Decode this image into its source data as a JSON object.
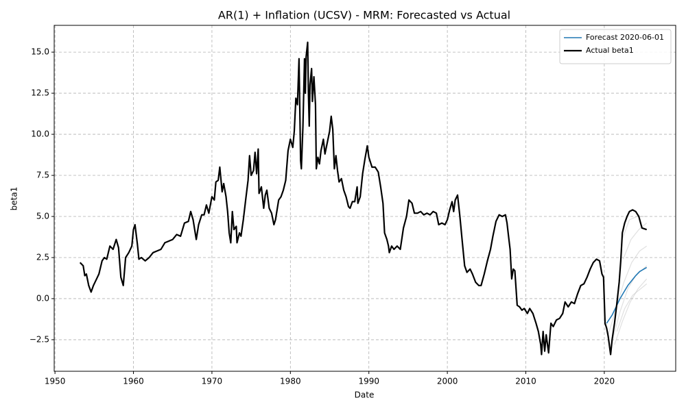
{
  "chart_data": {
    "type": "line",
    "title": "AR(1) + Inflation (UCSV) - MRM: Forecasted vs Actual",
    "x_label": "Date",
    "y_label": "beta1",
    "xlim": [
      1949.9,
      2029.1
    ],
    "ylim": [
      -4.42,
      16.63
    ],
    "xticks": [
      1950,
      1960,
      1970,
      1980,
      1990,
      2000,
      2010,
      2020
    ],
    "yticks": [
      {
        "value": -2.5,
        "label": "−2.5"
      },
      {
        "value": 0,
        "label": "0.0"
      },
      2.5,
      {
        "value": 5,
        "label": "5.0"
      },
      7.5,
      {
        "value": 10,
        "label": "10.0"
      },
      12.5,
      {
        "value": 15,
        "label": "15.0"
      }
    ],
    "grid": true,
    "legend": "upper right",
    "series": [
      {
        "name": "Forecast 2020-06-01",
        "color": "#1f77b4",
        "x": [
          2020.3,
          2021.0,
          2021.5,
          2022.0,
          2022.5,
          2023.0,
          2023.5,
          2024.0,
          2024.5,
          2025.4
        ],
        "values": [
          -1.5,
          -1.0,
          -0.5,
          0.0,
          0.4,
          0.8,
          1.1,
          1.4,
          1.65,
          1.9
        ]
      },
      {
        "name": "Actual beta1",
        "color": "#000000",
        "x": [
          1953.2,
          1953.6,
          1953.8,
          1954.0,
          1954.3,
          1954.6,
          1954.9,
          1955.3,
          1955.6,
          1956.0,
          1956.3,
          1956.6,
          1957.0,
          1957.4,
          1957.8,
          1958.1,
          1958.4,
          1958.7,
          1959.0,
          1959.4,
          1959.8,
          1960.0,
          1960.2,
          1960.5,
          1960.7,
          1961.0,
          1961.5,
          1962.0,
          1962.5,
          1963.0,
          1963.5,
          1964.0,
          1964.5,
          1965.0,
          1965.5,
          1966.0,
          1966.5,
          1967.0,
          1967.3,
          1967.6,
          1968.0,
          1968.3,
          1968.7,
          1969.0,
          1969.3,
          1969.6,
          1970.0,
          1970.3,
          1970.5,
          1970.8,
          1971.0,
          1971.3,
          1971.5,
          1971.8,
          1972.0,
          1972.2,
          1972.4,
          1972.6,
          1972.8,
          1973.1,
          1973.2,
          1973.5,
          1973.7,
          1974.0,
          1974.3,
          1974.6,
          1974.8,
          1975.0,
          1975.3,
          1975.5,
          1975.7,
          1975.9,
          1976.0,
          1976.3,
          1976.6,
          1976.8,
          1977.0,
          1977.3,
          1977.6,
          1977.9,
          1978.1,
          1978.5,
          1978.8,
          1979.1,
          1979.4,
          1979.7,
          1980.0,
          1980.3,
          1980.5,
          1980.7,
          1980.9,
          1981.1,
          1981.3,
          1981.4,
          1981.6,
          1981.8,
          1981.9,
          1982.0,
          1982.2,
          1982.3,
          1982.4,
          1982.5,
          1982.7,
          1982.8,
          1983.0,
          1983.2,
          1983.3,
          1983.5,
          1983.7,
          1983.9,
          1984.2,
          1984.4,
          1984.7,
          1985.0,
          1985.2,
          1985.4,
          1985.6,
          1985.8,
          1986.0,
          1986.2,
          1986.5,
          1986.8,
          1987.1,
          1987.4,
          1987.6,
          1987.9,
          1988.2,
          1988.5,
          1988.6,
          1988.9,
          1989.2,
          1989.5,
          1989.8,
          1990.0,
          1990.4,
          1990.8,
          1991.2,
          1991.5,
          1991.8,
          1992.0,
          1992.3,
          1992.5,
          1992.6,
          1992.9,
          1993.2,
          1993.6,
          1994.0,
          1994.4,
          1994.8,
          1995.1,
          1995.5,
          1995.8,
          1996.2,
          1996.6,
          1997.0,
          1997.4,
          1997.8,
          1998.2,
          1998.6,
          1998.9,
          1999.3,
          1999.7,
          2000.0,
          2000.3,
          2000.6,
          2000.8,
          2001.0,
          2001.3,
          2001.6,
          2001.9,
          2002.2,
          2002.5,
          2002.9,
          2003.2,
          2003.6,
          2004.0,
          2004.3,
          2004.7,
          2005.1,
          2005.5,
          2005.8,
          2006.2,
          2006.6,
          2007.0,
          2007.4,
          2007.6,
          2007.8,
          2008.0,
          2008.2,
          2008.4,
          2008.6,
          2008.9,
          2009.2,
          2009.5,
          2009.8,
          2010.2,
          2010.5,
          2010.9,
          2011.3,
          2011.6,
          2011.9,
          2012.0,
          2012.2,
          2012.4,
          2012.6,
          2012.9,
          2013.2,
          2013.5,
          2013.9,
          2014.3,
          2014.7,
          2015.0,
          2015.4,
          2015.8,
          2016.2,
          2016.6,
          2017.0,
          2017.4,
          2017.8,
          2018.2,
          2018.6,
          2019.0,
          2019.4,
          2019.7,
          2019.9,
          2020.1,
          2020.3,
          2020.5,
          2020.8,
          2021.0,
          2021.3,
          2021.6,
          2021.9,
          2022.1,
          2022.3,
          2022.6,
          2022.9,
          2023.2,
          2023.6,
          2024.0,
          2024.4,
          2024.8,
          2025.4
        ],
        "values": [
          2.2,
          2.0,
          1.4,
          1.5,
          0.8,
          0.4,
          0.8,
          1.2,
          1.5,
          2.3,
          2.5,
          2.4,
          3.2,
          3.0,
          3.6,
          3.1,
          1.3,
          0.8,
          2.5,
          2.8,
          3.2,
          4.2,
          4.5,
          3.3,
          2.4,
          2.5,
          2.3,
          2.5,
          2.8,
          2.9,
          3.0,
          3.4,
          3.5,
          3.6,
          3.9,
          3.8,
          4.6,
          4.7,
          5.3,
          4.8,
          3.6,
          4.5,
          5.1,
          5.1,
          5.7,
          5.2,
          6.2,
          6.0,
          7.1,
          7.2,
          8.0,
          6.5,
          7.0,
          6.2,
          5.3,
          4.0,
          3.4,
          5.3,
          4.2,
          4.4,
          3.4,
          4.0,
          3.8,
          4.8,
          6.0,
          7.2,
          8.7,
          7.5,
          7.8,
          8.9,
          7.6,
          9.1,
          6.4,
          6.8,
          5.5,
          6.3,
          6.6,
          5.5,
          5.2,
          4.5,
          4.8,
          6.0,
          6.2,
          6.6,
          7.2,
          9.0,
          9.7,
          9.2,
          10.2,
          12.2,
          11.8,
          14.6,
          8.4,
          7.9,
          10.5,
          14.6,
          12.5,
          14.7,
          15.6,
          12.5,
          10.5,
          13.0,
          14.0,
          12.0,
          13.5,
          11.8,
          7.9,
          8.6,
          8.2,
          9.0,
          9.7,
          8.8,
          9.5,
          10.2,
          11.1,
          10.3,
          7.9,
          8.7,
          7.8,
          7.1,
          7.3,
          6.6,
          6.2,
          5.6,
          5.5,
          5.9,
          5.9,
          6.8,
          5.8,
          6.2,
          7.6,
          8.5,
          9.3,
          8.6,
          8.0,
          8.0,
          7.7,
          6.8,
          5.8,
          4.0,
          3.6,
          3.2,
          2.8,
          3.2,
          3.0,
          3.2,
          3.0,
          4.3,
          5.0,
          6.0,
          5.8,
          5.2,
          5.2,
          5.3,
          5.1,
          5.2,
          5.1,
          5.3,
          5.2,
          4.5,
          4.6,
          4.5,
          4.8,
          5.4,
          5.9,
          5.3,
          6.0,
          6.3,
          5.0,
          3.5,
          2.0,
          1.6,
          1.8,
          1.5,
          1.0,
          0.8,
          0.8,
          1.5,
          2.3,
          3.0,
          3.8,
          4.7,
          5.1,
          5.0,
          5.1,
          4.6,
          3.8,
          3.0,
          1.2,
          1.8,
          1.7,
          -0.4,
          -0.5,
          -0.7,
          -0.6,
          -0.9,
          -0.6,
          -0.9,
          -1.5,
          -2.0,
          -2.8,
          -3.4,
          -2.0,
          -3.2,
          -2.2,
          -3.3,
          -1.5,
          -1.7,
          -1.3,
          -1.2,
          -0.9,
          -0.2,
          -0.5,
          -0.2,
          -0.3,
          0.3,
          0.8,
          0.9,
          1.3,
          1.8,
          2.2,
          2.4,
          2.3,
          1.5,
          1.3,
          -1.5,
          -1.8,
          -2.3,
          -3.4,
          -2.5,
          -1.5,
          -0.3,
          1.0,
          2.3,
          4.0,
          4.6,
          5.0,
          5.3,
          5.4,
          5.3,
          5.0,
          4.3,
          4.2
        ]
      },
      {
        "color": "#bbbbbb",
        "x": [
          2020.5,
          2021.5,
          2022.5,
          2023.5,
          2024.5,
          2025.4
        ],
        "values": [
          -2.2,
          -0.6,
          1.0,
          2.2,
          2.9,
          3.2
        ]
      },
      {
        "color": "#bbbbbb",
        "x": [
          2021.0,
          2022.0,
          2023.0,
          2024.0,
          2025.4
        ],
        "values": [
          -2.6,
          -0.8,
          0.6,
          1.4,
          2.0
        ]
      },
      {
        "color": "#bbbbbb",
        "x": [
          2021.3,
          2022.3,
          2023.3,
          2024.3,
          2025.4
        ],
        "values": [
          -2.8,
          -1.4,
          -0.2,
          0.6,
          1.2
        ]
      },
      {
        "color": "#bbbbbb",
        "x": [
          2021.6,
          2022.6,
          2023.6,
          2025.4
        ],
        "values": [
          -2.0,
          -0.6,
          0.2,
          0.9
        ]
      },
      {
        "color": "#bbbbbb",
        "x": [
          2022.2,
          2023.2,
          2024.2,
          2025.4
        ],
        "values": [
          3.5,
          4.8,
          5.0,
          5.0
        ]
      },
      {
        "color": "#bbbbbb",
        "x": [
          2022.4,
          2023.4,
          2024.4,
          2025.4
        ],
        "values": [
          2.4,
          3.6,
          4.2,
          4.6
        ]
      }
    ]
  }
}
